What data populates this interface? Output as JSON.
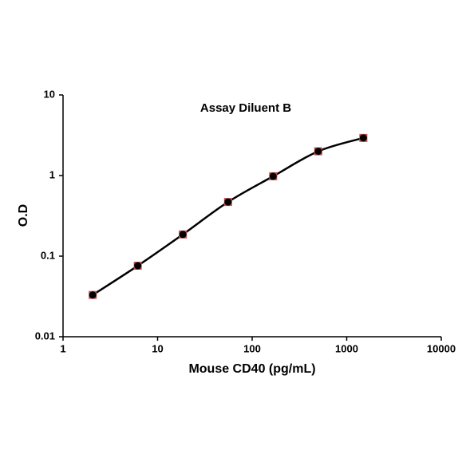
{
  "chart_data": {
    "type": "line",
    "title": "Assay Diluent B",
    "x_label": "Mouse CD40 (pg/mL)",
    "y_label": "O.D",
    "x": [
      2.06,
      6.17,
      18.5,
      55.6,
      166.7,
      500,
      1500
    ],
    "series": [
      {
        "name": "Assay Diluent B",
        "color": "#000000",
        "marker_color": "#c0504d",
        "values": [
          0.033,
          0.076,
          0.186,
          0.47,
          0.98,
          2.0,
          2.93
        ]
      }
    ],
    "xlim": [
      1,
      10000
    ],
    "xticks": [
      1,
      10,
      100,
      1000,
      10000
    ],
    "ylim": [
      0.01,
      10
    ],
    "yticks": [
      0.01,
      0.1,
      1,
      10
    ],
    "x_log": true,
    "y_log": true
  }
}
